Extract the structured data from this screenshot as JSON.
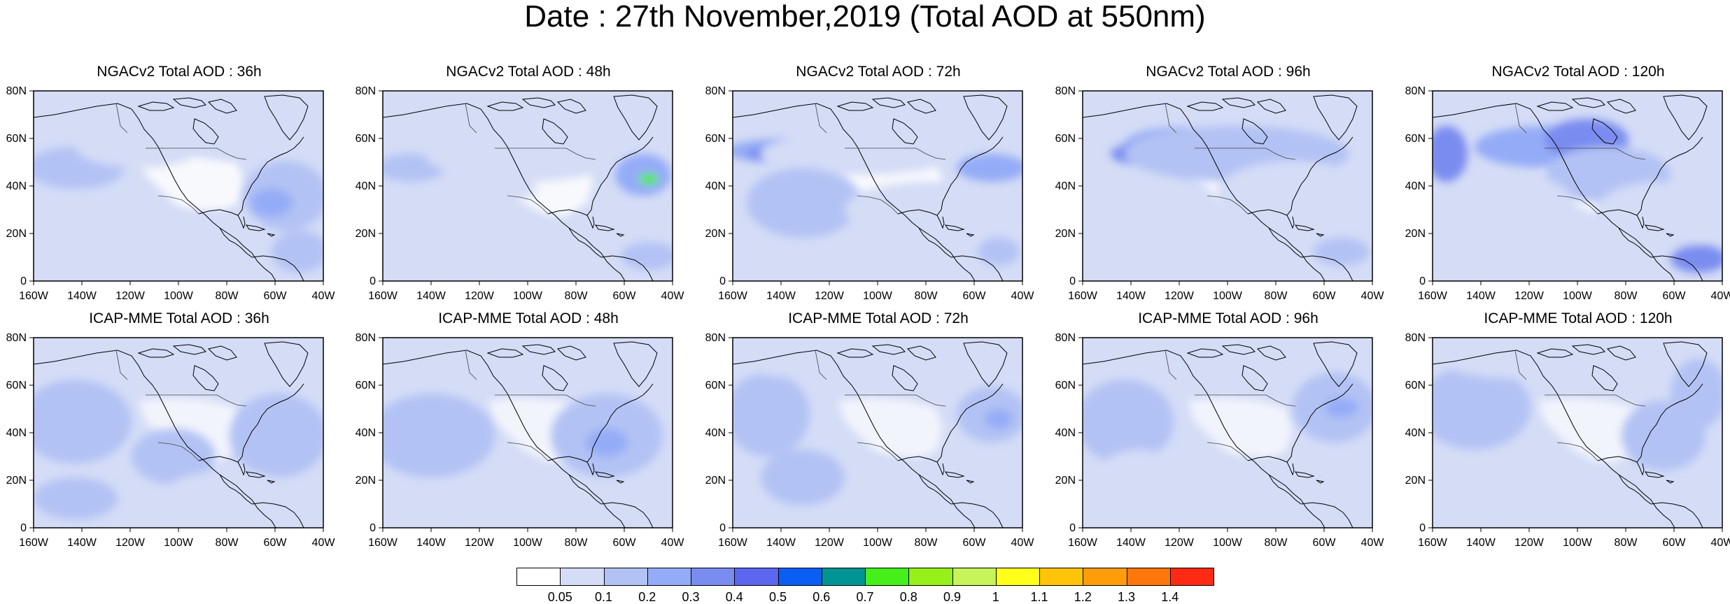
{
  "title": "Date : 27th November,2019 (Total AOD at 550nm)",
  "lat_labels": [
    "80N",
    "60N",
    "40N",
    "20N",
    "0"
  ],
  "lon_labels": [
    "160W",
    "140W",
    "120W",
    "100W",
    "80W",
    "60W",
    "40W"
  ],
  "panels": [
    {
      "title": "NGACv2 Total AOD : 36h"
    },
    {
      "title": "NGACv2 Total AOD : 48h"
    },
    {
      "title": "NGACv2 Total AOD : 72h"
    },
    {
      "title": "NGACv2 Total AOD : 96h"
    },
    {
      "title": "NGACv2 Total AOD : 120h"
    },
    {
      "title": "ICAP-MME Total AOD : 36h"
    },
    {
      "title": "ICAP-MME Total AOD : 48h"
    },
    {
      "title": "ICAP-MME Total AOD : 72h"
    },
    {
      "title": "ICAP-MME Total AOD : 96h"
    },
    {
      "title": "ICAP-MME Total AOD : 120h"
    }
  ],
  "colorbar": {
    "labels": [
      "0.05",
      "0.1",
      "0.2",
      "0.3",
      "0.4",
      "0.5",
      "0.6",
      "0.7",
      "0.8",
      "0.9",
      "1",
      "1.1",
      "1.2",
      "1.3",
      "1.4"
    ],
    "colors": [
      "#ffffff",
      "#d4dcf6",
      "#b2c2f4",
      "#94acf7",
      "#7a8cf0",
      "#5c66ee",
      "#0a5ef4",
      "#009494",
      "#46ee1a",
      "#96f01a",
      "#c6f45a",
      "#ffff1a",
      "#ffc40a",
      "#ff9c0a",
      "#ff760a",
      "#ff2a14"
    ]
  }
}
